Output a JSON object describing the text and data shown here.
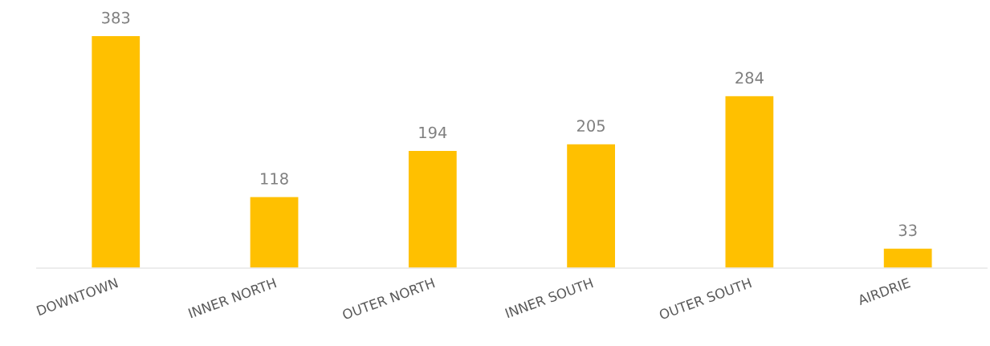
{
  "chart_data": {
    "type": "bar",
    "categories": [
      "DOWNTOWN",
      "INNER NORTH",
      "OUTER NORTH",
      "INNER SOUTH",
      "OUTER SOUTH",
      "AIRDRIE"
    ],
    "values": [
      383,
      118,
      194,
      205,
      284,
      33
    ],
    "color": "#ffc000",
    "data_labels": true,
    "grid": false,
    "legend": false
  }
}
